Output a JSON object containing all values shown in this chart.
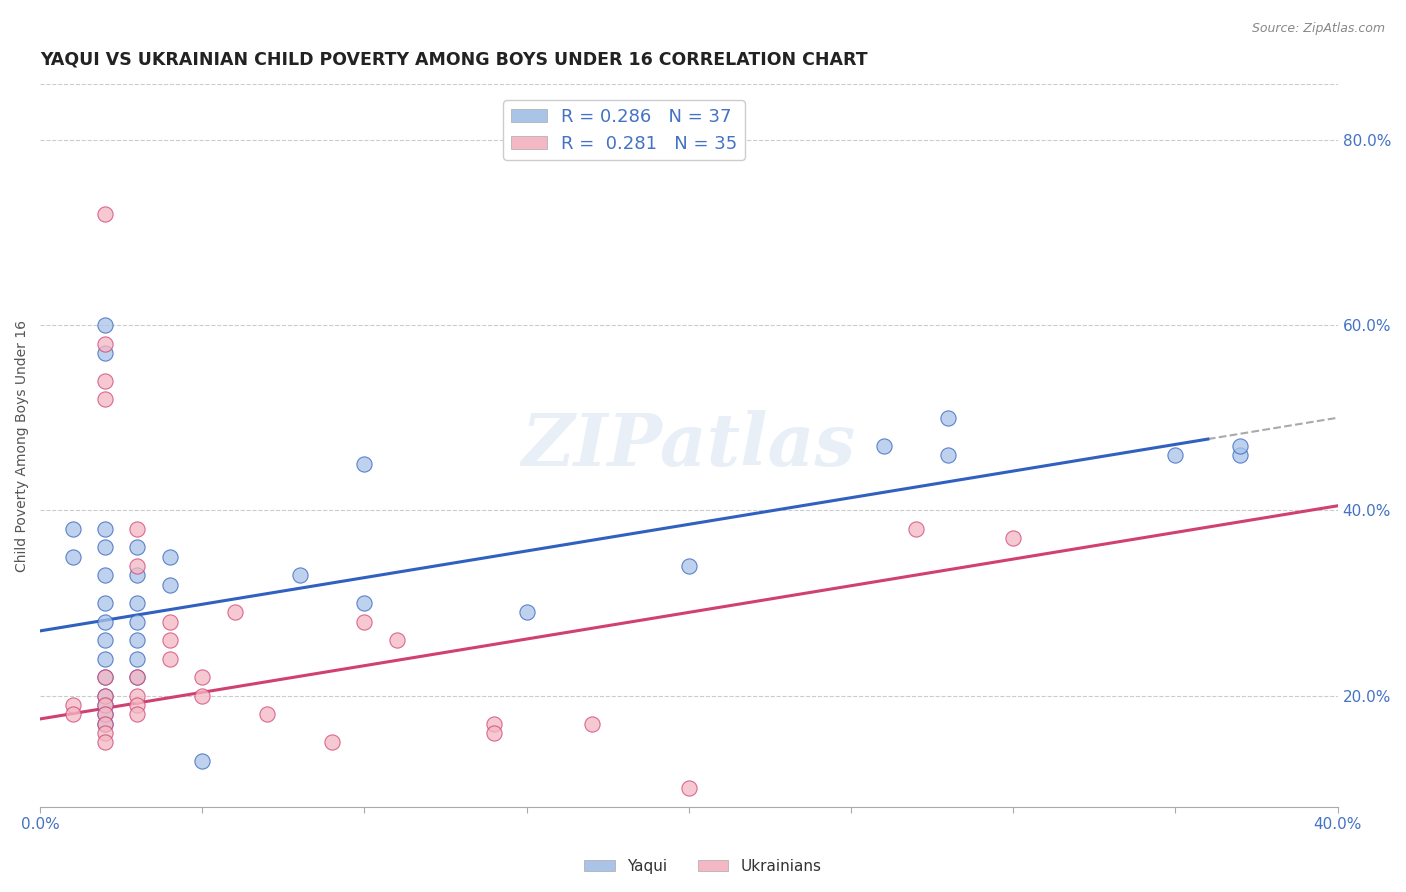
{
  "title": "YAQUI VS UKRAINIAN CHILD POVERTY AMONG BOYS UNDER 16 CORRELATION CHART",
  "source": "Source: ZipAtlas.com",
  "ylabel": "Child Poverty Among Boys Under 16",
  "xlim": [
    0.0,
    0.4
  ],
  "ylim": [
    0.08,
    0.86
  ],
  "xticks": [
    0.0,
    0.05,
    0.1,
    0.15,
    0.2,
    0.25,
    0.3,
    0.35,
    0.4
  ],
  "ytick_labels_right": [
    "20.0%",
    "40.0%",
    "60.0%",
    "80.0%"
  ],
  "ytick_vals_right": [
    0.2,
    0.4,
    0.6,
    0.8
  ],
  "yaqui_color": "#aac4e8",
  "ukrainian_color": "#f4b8c4",
  "yaqui_scatter": [
    [
      0.01,
      0.38
    ],
    [
      0.01,
      0.35
    ],
    [
      0.02,
      0.6
    ],
    [
      0.02,
      0.57
    ],
    [
      0.02,
      0.38
    ],
    [
      0.02,
      0.36
    ],
    [
      0.02,
      0.33
    ],
    [
      0.02,
      0.3
    ],
    [
      0.02,
      0.28
    ],
    [
      0.02,
      0.26
    ],
    [
      0.02,
      0.24
    ],
    [
      0.02,
      0.22
    ],
    [
      0.02,
      0.2
    ],
    [
      0.02,
      0.19
    ],
    [
      0.02,
      0.18
    ],
    [
      0.02,
      0.17
    ],
    [
      0.03,
      0.36
    ],
    [
      0.03,
      0.33
    ],
    [
      0.03,
      0.3
    ],
    [
      0.03,
      0.28
    ],
    [
      0.03,
      0.26
    ],
    [
      0.03,
      0.24
    ],
    [
      0.03,
      0.22
    ],
    [
      0.04,
      0.35
    ],
    [
      0.04,
      0.32
    ],
    [
      0.05,
      0.13
    ],
    [
      0.08,
      0.33
    ],
    [
      0.1,
      0.3
    ],
    [
      0.15,
      0.29
    ],
    [
      0.2,
      0.34
    ],
    [
      0.26,
      0.47
    ],
    [
      0.28,
      0.46
    ],
    [
      0.35,
      0.46
    ],
    [
      0.37,
      0.46
    ],
    [
      0.37,
      0.47
    ],
    [
      0.28,
      0.5
    ],
    [
      0.1,
      0.45
    ]
  ],
  "ukrainian_scatter": [
    [
      0.01,
      0.19
    ],
    [
      0.01,
      0.18
    ],
    [
      0.02,
      0.72
    ],
    [
      0.02,
      0.58
    ],
    [
      0.02,
      0.54
    ],
    [
      0.02,
      0.52
    ],
    [
      0.02,
      0.22
    ],
    [
      0.02,
      0.2
    ],
    [
      0.02,
      0.19
    ],
    [
      0.02,
      0.18
    ],
    [
      0.02,
      0.17
    ],
    [
      0.02,
      0.16
    ],
    [
      0.02,
      0.15
    ],
    [
      0.03,
      0.38
    ],
    [
      0.03,
      0.34
    ],
    [
      0.03,
      0.22
    ],
    [
      0.03,
      0.2
    ],
    [
      0.03,
      0.19
    ],
    [
      0.03,
      0.18
    ],
    [
      0.04,
      0.28
    ],
    [
      0.04,
      0.26
    ],
    [
      0.04,
      0.24
    ],
    [
      0.05,
      0.22
    ],
    [
      0.05,
      0.2
    ],
    [
      0.06,
      0.29
    ],
    [
      0.07,
      0.18
    ],
    [
      0.09,
      0.15
    ],
    [
      0.1,
      0.28
    ],
    [
      0.11,
      0.26
    ],
    [
      0.14,
      0.17
    ],
    [
      0.14,
      0.16
    ],
    [
      0.17,
      0.17
    ],
    [
      0.2,
      0.1
    ],
    [
      0.27,
      0.38
    ],
    [
      0.3,
      0.37
    ]
  ],
  "yaqui_R": 0.286,
  "yaqui_N": 37,
  "ukrainian_R": 0.281,
  "ukrainian_N": 35,
  "yaqui_line_color": "#3060c0",
  "ukrainian_line_color": "#d04070",
  "yaqui_line": [
    0.0,
    0.27,
    0.4,
    0.5
  ],
  "ukrainian_line": [
    0.0,
    0.175,
    0.4,
    0.405
  ],
  "dash_line_start_x": 0.36,
  "watermark": "ZIPatlas",
  "background_color": "#ffffff",
  "grid_color": "#cccccc"
}
